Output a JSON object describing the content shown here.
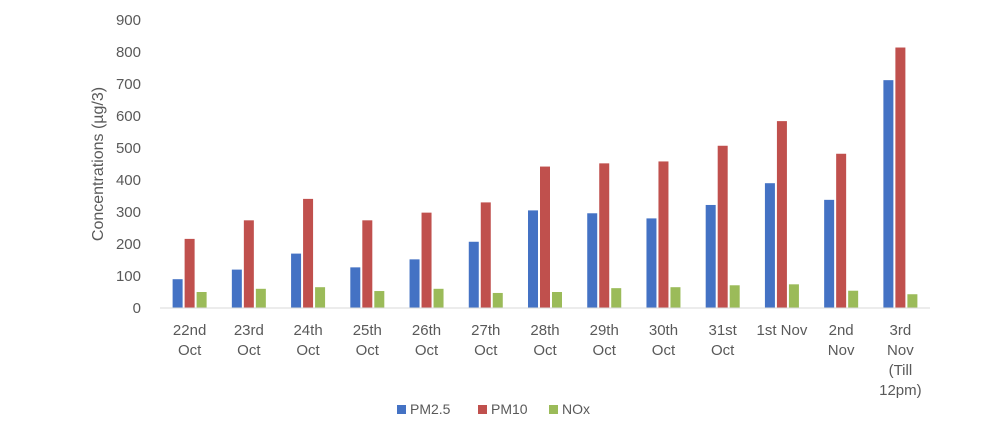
{
  "chart_data": {
    "type": "bar",
    "categories": [
      [
        "22nd",
        "Oct"
      ],
      [
        "23rd",
        "Oct"
      ],
      [
        "24th",
        "Oct"
      ],
      [
        "25th",
        "Oct"
      ],
      [
        "26th",
        "Oct"
      ],
      [
        "27th",
        "Oct"
      ],
      [
        "28th",
        "Oct"
      ],
      [
        "29th",
        "Oct"
      ],
      [
        "30th",
        "Oct"
      ],
      [
        "31st",
        "Oct"
      ],
      [
        "1st Nov"
      ],
      [
        "2nd",
        "Nov"
      ],
      [
        "3rd",
        "Nov",
        "(Till",
        "12pm)"
      ]
    ],
    "series": [
      {
        "name": "PM2.5",
        "color": "#4472C4",
        "values": [
          90,
          120,
          170,
          127,
          152,
          207,
          305,
          296,
          280,
          322,
          390,
          338,
          712
        ]
      },
      {
        "name": "PM10",
        "color": "#C0504D",
        "values": [
          216,
          274,
          341,
          274,
          298,
          330,
          442,
          452,
          458,
          507,
          584,
          482,
          814
        ]
      },
      {
        "name": "NOx",
        "color": "#9BBB59",
        "values": [
          50,
          60,
          65,
          53,
          60,
          47,
          50,
          62,
          65,
          71,
          74,
          54,
          43
        ]
      }
    ],
    "ylabel": "Concentrations (µg/3)",
    "ylim": [
      0,
      900
    ],
    "yticks": [
      0,
      100,
      200,
      300,
      400,
      500,
      600,
      700,
      800,
      900
    ],
    "grid": false,
    "legend": "bottom"
  }
}
